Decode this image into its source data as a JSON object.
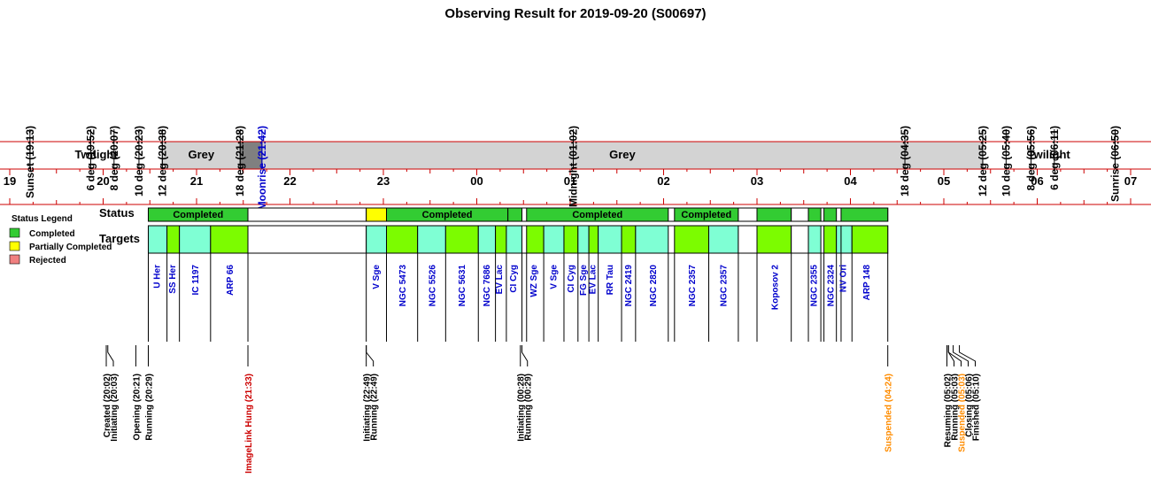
{
  "title": "Observing Result for 2019-09-20 (S00697)",
  "colors": {
    "completed": "#33cc33",
    "partial": "#ffff00",
    "rejected": "#f08080",
    "twilight": "#ffffff",
    "grey": "#d3d3d3",
    "dark": "#808080",
    "axis_red": "#cc0000",
    "target_a": "#7fffd4",
    "target_b": "#7cfc00",
    "target_text": "#0000cc",
    "event_black": "#000000",
    "event_red": "#cc0000",
    "event_orange": "#ff8c00",
    "moon_blue": "#0000cc"
  },
  "row_labels": {
    "status": "Status",
    "targets": "Targets"
  },
  "legend": {
    "title": "Status Legend",
    "items": [
      {
        "label": "Completed",
        "color": "#33cc33"
      },
      {
        "label": "Partially Completed",
        "color": "#ffff00"
      },
      {
        "label": "Rejected",
        "color": "#f08080"
      }
    ]
  },
  "chart_data": {
    "type": "timeline",
    "x_axis": {
      "hours": [
        "19",
        "20",
        "21",
        "22",
        "23",
        "00",
        "01",
        "02",
        "03",
        "04",
        "05",
        "06",
        "07"
      ],
      "range": [
        "19:00",
        "07:00"
      ]
    },
    "top_markers": [
      {
        "label": "Sunset (19:13)",
        "time": "19:13",
        "color": "black"
      },
      {
        "label": "6 deg (19:52)",
        "time": "19:52",
        "color": "black"
      },
      {
        "label": "8 deg (20:07)",
        "time": "20:07",
        "color": "black"
      },
      {
        "label": "10 deg (20:23)",
        "time": "20:23",
        "color": "black"
      },
      {
        "label": "12 deg (20:38)",
        "time": "20:38",
        "color": "black"
      },
      {
        "label": "18 deg (21:28)",
        "time": "21:28",
        "color": "black"
      },
      {
        "label": "Moonrise (21:42)",
        "time": "21:42",
        "color": "blue"
      },
      {
        "label": "Midnight (01:02)",
        "time": "01:02",
        "color": "black"
      },
      {
        "label": "18 deg (04:35)",
        "time": "04:35",
        "color": "black"
      },
      {
        "label": "12 deg (05:25)",
        "time": "05:25",
        "color": "black"
      },
      {
        "label": "10 deg (05:40)",
        "time": "05:40",
        "color": "black"
      },
      {
        "label": "8 deg (05:56)",
        "time": "05:56",
        "color": "black"
      },
      {
        "label": "6 deg (06:11)",
        "time": "06:11",
        "color": "black"
      },
      {
        "label": "Sunrise (06:50)",
        "time": "06:50",
        "color": "black"
      }
    ],
    "sky_bands": [
      {
        "label": "Twilight",
        "start": "19:13",
        "end": "20:38",
        "kind": "twilight"
      },
      {
        "label": "Grey",
        "start": "20:38",
        "end": "21:28",
        "kind": "grey"
      },
      {
        "label": "",
        "start": "21:28",
        "end": "21:42",
        "kind": "dark"
      },
      {
        "label": "Grey",
        "start": "21:42",
        "end": "05:25",
        "kind": "grey"
      },
      {
        "label": "Twilight",
        "start": "05:25",
        "end": "06:50",
        "kind": "twilight"
      }
    ],
    "status_blocks": [
      {
        "label": "Completed",
        "start": "20:29",
        "end": "21:33",
        "status": "completed"
      },
      {
        "label": "",
        "start": "21:33",
        "end": "22:49",
        "status": "none"
      },
      {
        "label": "",
        "start": "22:49",
        "end": "23:02",
        "status": "partial"
      },
      {
        "label": "Completed",
        "start": "23:02",
        "end": "00:20",
        "status": "completed"
      },
      {
        "label": "",
        "start": "00:20",
        "end": "00:29",
        "status": "completed"
      },
      {
        "label": "Completed",
        "start": "00:32",
        "end": "02:03",
        "status": "completed"
      },
      {
        "label": "Completed",
        "start": "02:07",
        "end": "02:48",
        "status": "completed"
      },
      {
        "label": "",
        "start": "02:48",
        "end": "03:00",
        "status": "none"
      },
      {
        "label": "",
        "start": "03:00",
        "end": "03:22",
        "status": "completed"
      },
      {
        "label": "",
        "start": "03:22",
        "end": "03:33",
        "status": "none"
      },
      {
        "label": "",
        "start": "03:33",
        "end": "03:41",
        "status": "completed"
      },
      {
        "label": "",
        "start": "03:43",
        "end": "03:51",
        "status": "completed"
      },
      {
        "label": "",
        "start": "03:54",
        "end": "04:24",
        "status": "completed"
      }
    ],
    "targets": [
      {
        "label": "",
        "start": "20:29",
        "end": "20:41",
        "color": "aqua"
      },
      {
        "label": "",
        "start": "20:41",
        "end": "20:49",
        "color": "lime"
      },
      {
        "label": "",
        "start": "20:49",
        "end": "21:09",
        "color": "aqua"
      },
      {
        "label": "",
        "start": "21:09",
        "end": "21:33",
        "color": "lime"
      },
      {
        "label": "",
        "start": "21:33",
        "end": "22:49",
        "color": "none"
      },
      {
        "label": "",
        "start": "22:49",
        "end": "23:02",
        "color": "aqua"
      },
      {
        "label": "",
        "start": "23:02",
        "end": "23:22",
        "color": "lime"
      },
      {
        "label": "",
        "start": "23:22",
        "end": "23:40",
        "color": "aqua"
      },
      {
        "label": "",
        "start": "23:40",
        "end": "00:01",
        "color": "lime"
      },
      {
        "label": "",
        "start": "00:01",
        "end": "00:12",
        "color": "aqua"
      },
      {
        "label": "",
        "start": "00:12",
        "end": "00:19",
        "color": "lime"
      },
      {
        "label": "",
        "start": "00:19",
        "end": "00:29",
        "color": "aqua"
      },
      {
        "label": "",
        "start": "00:32",
        "end": "00:43",
        "color": "lime"
      },
      {
        "label": "",
        "start": "00:43",
        "end": "00:56",
        "color": "aqua"
      },
      {
        "label": "",
        "start": "00:56",
        "end": "01:05",
        "color": "lime"
      },
      {
        "label": "",
        "start": "01:05",
        "end": "01:12",
        "color": "aqua"
      },
      {
        "label": "",
        "start": "01:12",
        "end": "01:18",
        "color": "lime"
      },
      {
        "label": "",
        "start": "01:18",
        "end": "01:33",
        "color": "aqua"
      },
      {
        "label": "",
        "start": "01:33",
        "end": "01:42",
        "color": "lime"
      },
      {
        "label": "",
        "start": "01:42",
        "end": "02:03",
        "color": "aqua"
      },
      {
        "label": "",
        "start": "02:07",
        "end": "02:29",
        "color": "lime"
      },
      {
        "label": "",
        "start": "02:29",
        "end": "02:48",
        "color": "aqua"
      },
      {
        "label": "",
        "start": "02:48",
        "end": "03:00",
        "color": "none"
      },
      {
        "label": "",
        "start": "03:00",
        "end": "03:22",
        "color": "lime"
      },
      {
        "label": "",
        "start": "03:22",
        "end": "03:33",
        "color": "none"
      },
      {
        "label": "",
        "start": "03:33",
        "end": "03:41",
        "color": "aqua"
      },
      {
        "label": "",
        "start": "03:43",
        "end": "03:51",
        "color": "lime"
      },
      {
        "label": "",
        "start": "03:51",
        "end": "03:54",
        "color": "aqua"
      },
      {
        "label": "",
        "start": "03:54",
        "end": "04:01",
        "color": "aqua"
      },
      {
        "label": "",
        "start": "04:01",
        "end": "04:24",
        "color": "lime"
      }
    ],
    "target_names": [
      {
        "label": "U Her",
        "time": "20:34"
      },
      {
        "label": "SS Her",
        "time": "20:44"
      },
      {
        "label": "IC 1197",
        "time": "20:59"
      },
      {
        "label": "ARP 66",
        "time": "21:21"
      },
      {
        "label": "V Sge",
        "time": "22:55"
      },
      {
        "label": "NGC 5473",
        "time": "23:12"
      },
      {
        "label": "NGC 5526",
        "time": "23:31"
      },
      {
        "label": "NGC 5631",
        "time": "23:50"
      },
      {
        "label": "NGC 7686",
        "time": "00:06"
      },
      {
        "label": "EV Lac",
        "time": "00:14"
      },
      {
        "label": "CI Cyg",
        "time": "00:23"
      },
      {
        "label": "WZ Sge",
        "time": "00:36"
      },
      {
        "label": "V Sge",
        "time": "00:49"
      },
      {
        "label": "CI Cyg",
        "time": "01:00"
      },
      {
        "label": "FG Sge",
        "time": "01:08"
      },
      {
        "label": "EV Lac",
        "time": "01:14"
      },
      {
        "label": "RR Tau",
        "time": "01:25"
      },
      {
        "label": "NGC 2419",
        "time": "01:37"
      },
      {
        "label": "NGC 2820",
        "time": "01:53"
      },
      {
        "label": "NGC 2357",
        "time": "02:18"
      },
      {
        "label": "NGC 2357",
        "time": "02:38"
      },
      {
        "label": "Koposov 2",
        "time": "03:11"
      },
      {
        "label": "NGC 2355",
        "time": "03:36"
      },
      {
        "label": "NGC 2324",
        "time": "03:47"
      },
      {
        "label": "NV Ori",
        "time": "03:55"
      },
      {
        "label": "ARP 148",
        "time": "04:10"
      }
    ],
    "events": [
      {
        "label": "Created (20:02)",
        "time": "20:02",
        "color": "black"
      },
      {
        "label": "Initiating (20:03)",
        "time": "20:03",
        "color": "black"
      },
      {
        "label": "Opening (20:21)",
        "time": "20:21",
        "color": "black"
      },
      {
        "label": "Running (20:29)",
        "time": "20:29",
        "color": "black"
      },
      {
        "label": "ImageLink Hung (21:33)",
        "time": "21:33",
        "color": "red"
      },
      {
        "label": "Initiating (22:49)",
        "time": "22:49",
        "color": "black"
      },
      {
        "label": "Running (22:49)",
        "time": "22:49",
        "color": "black"
      },
      {
        "label": "Initiating (00:28)",
        "time": "00:28",
        "color": "black"
      },
      {
        "label": "Running (00:29)",
        "time": "00:29",
        "color": "black"
      },
      {
        "label": "Suspended (04:24)",
        "time": "04:24",
        "color": "orange"
      },
      {
        "label": "Resuming (05:02)",
        "time": "05:02",
        "color": "black"
      },
      {
        "label": "Running (05:03)",
        "time": "05:03",
        "color": "black"
      },
      {
        "label": "Suspended (05:03)",
        "time": "05:03",
        "color": "orange"
      },
      {
        "label": "Closing (05:06)",
        "time": "05:06",
        "color": "black"
      },
      {
        "label": "Finished (05:10)",
        "time": "05:10",
        "color": "black"
      }
    ]
  }
}
